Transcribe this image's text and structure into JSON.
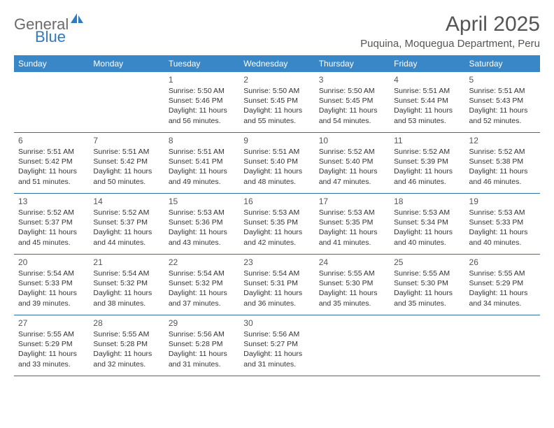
{
  "brand": {
    "general": "General",
    "blue": "Blue"
  },
  "title": "April 2025",
  "subtitle": "Puquina, Moquegua Department, Peru",
  "colors": {
    "header_bg": "#3a87c7",
    "row_border": "#2f6fa3",
    "logo_gray": "#6a6a6a",
    "logo_blue": "#2f7bbf",
    "title_color": "#555555"
  },
  "day_headers": [
    "Sunday",
    "Monday",
    "Tuesday",
    "Wednesday",
    "Thursday",
    "Friday",
    "Saturday"
  ],
  "weeks": [
    [
      {
        "blank": true
      },
      {
        "blank": true
      },
      {
        "day": "1",
        "sunrise": "Sunrise: 5:50 AM",
        "sunset": "Sunset: 5:46 PM",
        "daylight": "Daylight: 11 hours and 56 minutes."
      },
      {
        "day": "2",
        "sunrise": "Sunrise: 5:50 AM",
        "sunset": "Sunset: 5:45 PM",
        "daylight": "Daylight: 11 hours and 55 minutes."
      },
      {
        "day": "3",
        "sunrise": "Sunrise: 5:50 AM",
        "sunset": "Sunset: 5:45 PM",
        "daylight": "Daylight: 11 hours and 54 minutes."
      },
      {
        "day": "4",
        "sunrise": "Sunrise: 5:51 AM",
        "sunset": "Sunset: 5:44 PM",
        "daylight": "Daylight: 11 hours and 53 minutes."
      },
      {
        "day": "5",
        "sunrise": "Sunrise: 5:51 AM",
        "sunset": "Sunset: 5:43 PM",
        "daylight": "Daylight: 11 hours and 52 minutes."
      }
    ],
    [
      {
        "day": "6",
        "sunrise": "Sunrise: 5:51 AM",
        "sunset": "Sunset: 5:42 PM",
        "daylight": "Daylight: 11 hours and 51 minutes."
      },
      {
        "day": "7",
        "sunrise": "Sunrise: 5:51 AM",
        "sunset": "Sunset: 5:42 PM",
        "daylight": "Daylight: 11 hours and 50 minutes."
      },
      {
        "day": "8",
        "sunrise": "Sunrise: 5:51 AM",
        "sunset": "Sunset: 5:41 PM",
        "daylight": "Daylight: 11 hours and 49 minutes."
      },
      {
        "day": "9",
        "sunrise": "Sunrise: 5:51 AM",
        "sunset": "Sunset: 5:40 PM",
        "daylight": "Daylight: 11 hours and 48 minutes."
      },
      {
        "day": "10",
        "sunrise": "Sunrise: 5:52 AM",
        "sunset": "Sunset: 5:40 PM",
        "daylight": "Daylight: 11 hours and 47 minutes."
      },
      {
        "day": "11",
        "sunrise": "Sunrise: 5:52 AM",
        "sunset": "Sunset: 5:39 PM",
        "daylight": "Daylight: 11 hours and 46 minutes."
      },
      {
        "day": "12",
        "sunrise": "Sunrise: 5:52 AM",
        "sunset": "Sunset: 5:38 PM",
        "daylight": "Daylight: 11 hours and 46 minutes."
      }
    ],
    [
      {
        "day": "13",
        "sunrise": "Sunrise: 5:52 AM",
        "sunset": "Sunset: 5:37 PM",
        "daylight": "Daylight: 11 hours and 45 minutes."
      },
      {
        "day": "14",
        "sunrise": "Sunrise: 5:52 AM",
        "sunset": "Sunset: 5:37 PM",
        "daylight": "Daylight: 11 hours and 44 minutes."
      },
      {
        "day": "15",
        "sunrise": "Sunrise: 5:53 AM",
        "sunset": "Sunset: 5:36 PM",
        "daylight": "Daylight: 11 hours and 43 minutes."
      },
      {
        "day": "16",
        "sunrise": "Sunrise: 5:53 AM",
        "sunset": "Sunset: 5:35 PM",
        "daylight": "Daylight: 11 hours and 42 minutes."
      },
      {
        "day": "17",
        "sunrise": "Sunrise: 5:53 AM",
        "sunset": "Sunset: 5:35 PM",
        "daylight": "Daylight: 11 hours and 41 minutes."
      },
      {
        "day": "18",
        "sunrise": "Sunrise: 5:53 AM",
        "sunset": "Sunset: 5:34 PM",
        "daylight": "Daylight: 11 hours and 40 minutes."
      },
      {
        "day": "19",
        "sunrise": "Sunrise: 5:53 AM",
        "sunset": "Sunset: 5:33 PM",
        "daylight": "Daylight: 11 hours and 40 minutes."
      }
    ],
    [
      {
        "day": "20",
        "sunrise": "Sunrise: 5:54 AM",
        "sunset": "Sunset: 5:33 PM",
        "daylight": "Daylight: 11 hours and 39 minutes."
      },
      {
        "day": "21",
        "sunrise": "Sunrise: 5:54 AM",
        "sunset": "Sunset: 5:32 PM",
        "daylight": "Daylight: 11 hours and 38 minutes."
      },
      {
        "day": "22",
        "sunrise": "Sunrise: 5:54 AM",
        "sunset": "Sunset: 5:32 PM",
        "daylight": "Daylight: 11 hours and 37 minutes."
      },
      {
        "day": "23",
        "sunrise": "Sunrise: 5:54 AM",
        "sunset": "Sunset: 5:31 PM",
        "daylight": "Daylight: 11 hours and 36 minutes."
      },
      {
        "day": "24",
        "sunrise": "Sunrise: 5:55 AM",
        "sunset": "Sunset: 5:30 PM",
        "daylight": "Daylight: 11 hours and 35 minutes."
      },
      {
        "day": "25",
        "sunrise": "Sunrise: 5:55 AM",
        "sunset": "Sunset: 5:30 PM",
        "daylight": "Daylight: 11 hours and 35 minutes."
      },
      {
        "day": "26",
        "sunrise": "Sunrise: 5:55 AM",
        "sunset": "Sunset: 5:29 PM",
        "daylight": "Daylight: 11 hours and 34 minutes."
      }
    ],
    [
      {
        "day": "27",
        "sunrise": "Sunrise: 5:55 AM",
        "sunset": "Sunset: 5:29 PM",
        "daylight": "Daylight: 11 hours and 33 minutes."
      },
      {
        "day": "28",
        "sunrise": "Sunrise: 5:55 AM",
        "sunset": "Sunset: 5:28 PM",
        "daylight": "Daylight: 11 hours and 32 minutes."
      },
      {
        "day": "29",
        "sunrise": "Sunrise: 5:56 AM",
        "sunset": "Sunset: 5:28 PM",
        "daylight": "Daylight: 11 hours and 31 minutes."
      },
      {
        "day": "30",
        "sunrise": "Sunrise: 5:56 AM",
        "sunset": "Sunset: 5:27 PM",
        "daylight": "Daylight: 11 hours and 31 minutes."
      },
      {
        "blank": true
      },
      {
        "blank": true
      },
      {
        "blank": true
      }
    ]
  ]
}
